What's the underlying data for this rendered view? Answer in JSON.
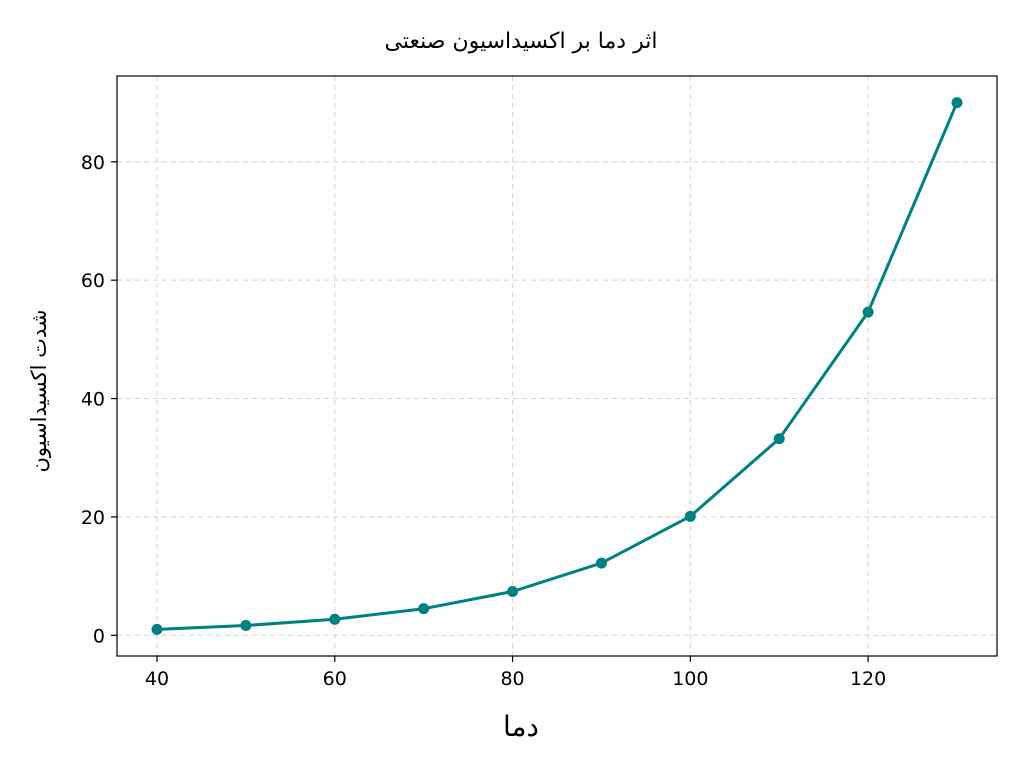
{
  "chart_data": {
    "type": "line",
    "title": "اثر دما بر اکسیداسیون صنعتی",
    "xlabel": "دما",
    "ylabel": "شدت اکسیداسیون",
    "x": [
      40,
      50,
      60,
      70,
      80,
      90,
      100,
      110,
      120,
      130
    ],
    "series": [
      {
        "values": [
          1.0,
          1.65,
          2.7,
          4.5,
          7.4,
          12.2,
          20.1,
          33.2,
          54.6,
          90.0
        ]
      }
    ],
    "xlim": [
      35.5,
      134.5
    ],
    "ylim": [
      -3.5,
      94.5
    ],
    "xticks": [
      40,
      60,
      80,
      100,
      120
    ],
    "yticks": [
      0,
      20,
      40,
      60,
      80
    ],
    "grid": true,
    "colors": {
      "line": "#008080",
      "marker": "#008080"
    }
  }
}
